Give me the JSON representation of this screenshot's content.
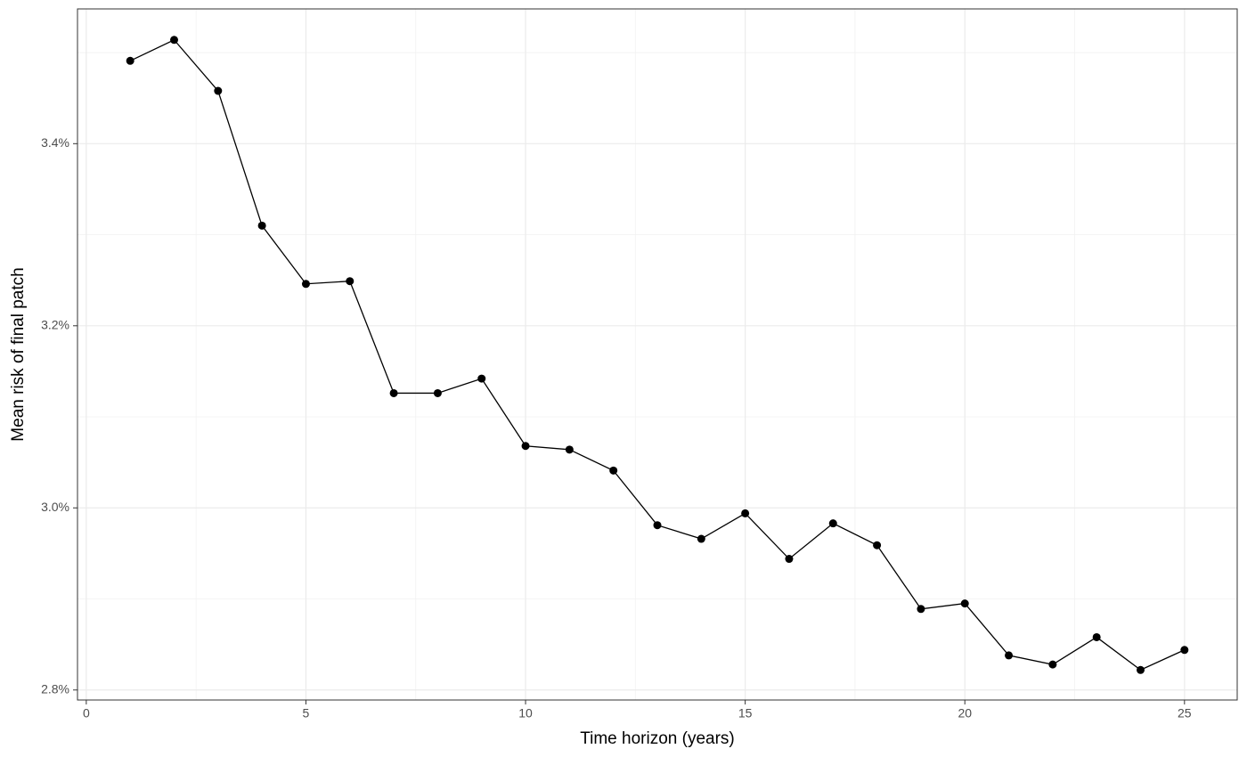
{
  "chart_data": {
    "type": "line",
    "x_label": "Time horizon (years)",
    "y_label": "Mean risk of final patch",
    "x": [
      1,
      2,
      3,
      4,
      5,
      6,
      7,
      8,
      9,
      10,
      11,
      12,
      13,
      14,
      15,
      16,
      17,
      18,
      19,
      20,
      21,
      22,
      23,
      24,
      25
    ],
    "values": [
      3.491,
      3.514,
      3.458,
      3.31,
      3.246,
      3.249,
      3.126,
      3.126,
      3.142,
      3.068,
      3.064,
      3.041,
      2.981,
      2.966,
      2.994,
      2.944,
      2.983,
      2.959,
      2.889,
      2.895,
      2.838,
      2.828,
      2.858,
      2.822,
      2.844
    ],
    "color": "#000000",
    "xlim": [
      -0.2,
      26.2
    ],
    "ylim": [
      2.789,
      3.548
    ],
    "xticks": [
      0,
      5,
      10,
      15,
      20,
      25
    ],
    "yticks": [
      {
        "value": 2.8,
        "label": "2.8%"
      },
      {
        "value": 3.0,
        "label": "3.0%"
      },
      {
        "value": 3.2,
        "label": "3.2%"
      },
      {
        "value": 3.4,
        "label": "3.4%"
      }
    ],
    "x_minor_grid": [
      2.5,
      7.5,
      12.5,
      17.5,
      22.5
    ],
    "y_minor_grid": [
      2.9,
      3.1,
      3.3,
      3.5
    ],
    "grid": true
  }
}
